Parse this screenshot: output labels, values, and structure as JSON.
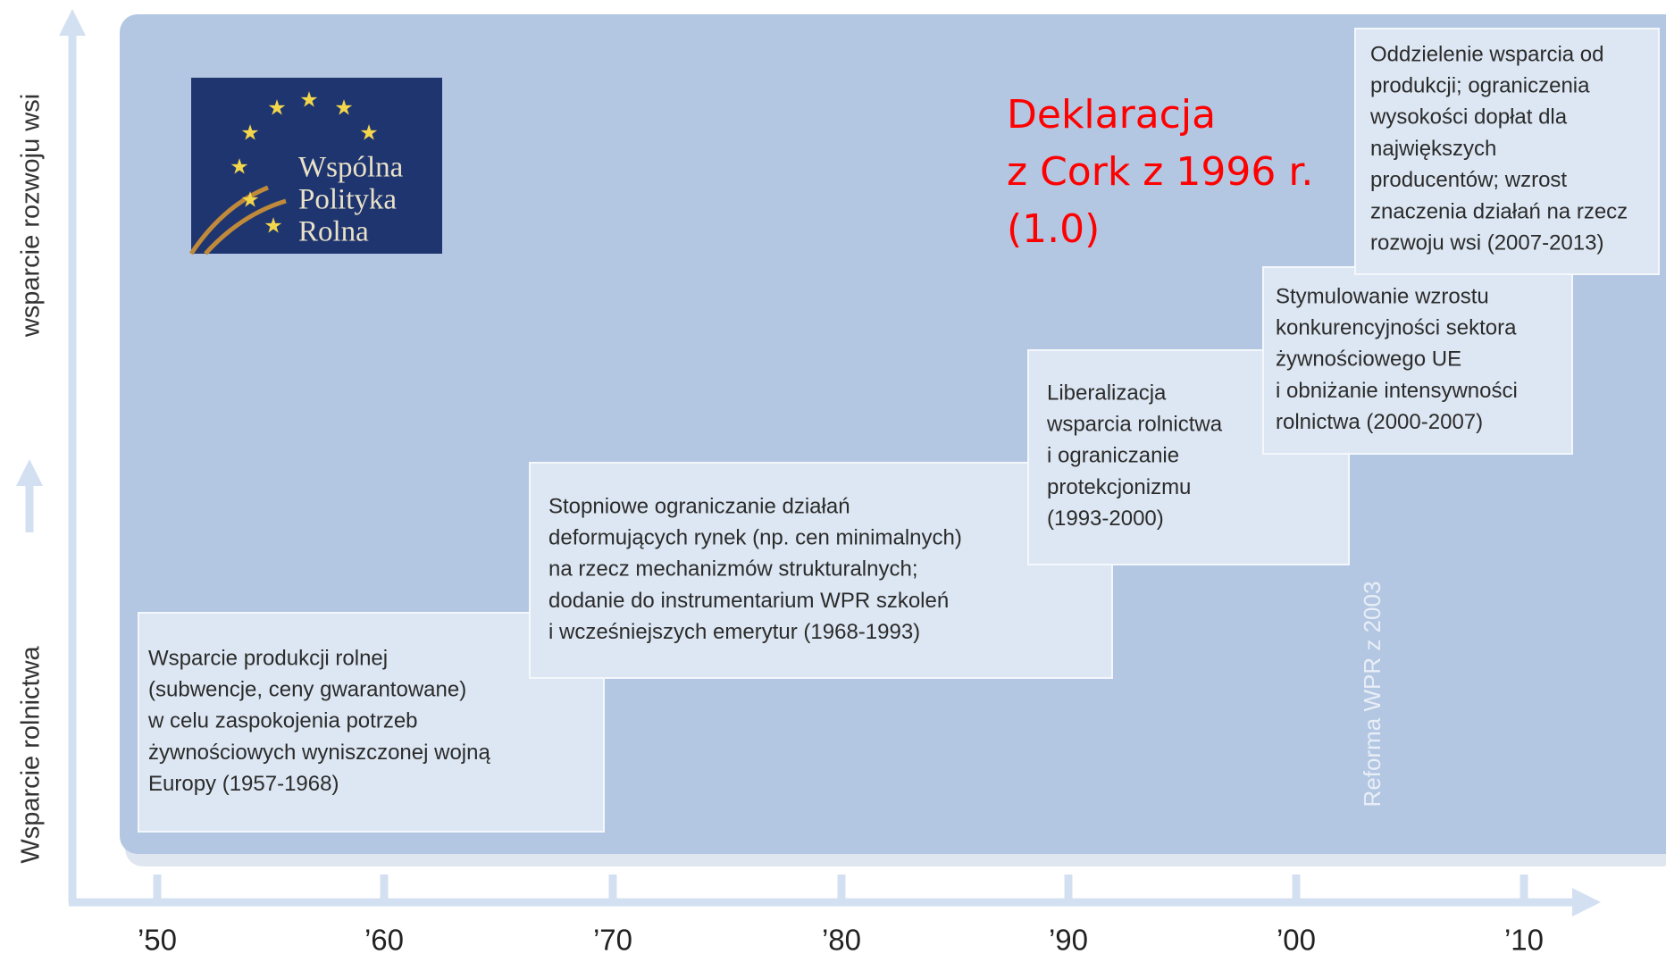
{
  "axis_y": {
    "top_label": "wsparcie rozwoju wsi",
    "bottom_label": "Wsparcie rolnictwa"
  },
  "axis_x": {
    "ticks": [
      "’50",
      "’60",
      "’70",
      "’80",
      "’90",
      "’00",
      "’10"
    ]
  },
  "logo": {
    "lines": [
      "Wspólna",
      "Polityka",
      "Rolna"
    ]
  },
  "annotation": {
    "lines": [
      "Deklaracja",
      "z Cork z 1996 r.",
      "(1.0)"
    ]
  },
  "reform_label": "Reforma WPR z 2003",
  "boxes": [
    {
      "lines": [
        "Wsparcie produkcji rolnej",
        "(subwencje, ceny gwarantowane)",
        "w celu zaspokojenia potrzeb",
        "żywnościowych wyniszczonej wojną",
        "Europy (1957-1968)"
      ]
    },
    {
      "lines": [
        "Stopniowe ograniczanie działań",
        "deformujących rynek (np. cen minimalnych)",
        "na rzecz mechanizmów strukturalnych;",
        "dodanie do instrumentarium WPR szkoleń",
        "i wcześniejszych emerytur (1968-1993)"
      ]
    },
    {
      "lines": [
        "Liberalizacja",
        "wsparcia rolnictwa",
        "i ograniczanie",
        "protekcjonizmu",
        "(1993-2000)"
      ]
    },
    {
      "lines": [
        "Stymulowanie wzrostu",
        "konkurencyjności sektora",
        "żywnościowego UE",
        "i obniżanie intensywności",
        "rolnictwa (2000-2007)"
      ]
    },
    {
      "lines": [
        "Oddzielenie wsparcia od",
        "produkcji; ograniczenia",
        "wysokości dopłat dla",
        "największych",
        "producentów; wzrost",
        "znaczenia działań na rzecz",
        "rozwoju wsi (2007-2013)"
      ]
    }
  ]
}
